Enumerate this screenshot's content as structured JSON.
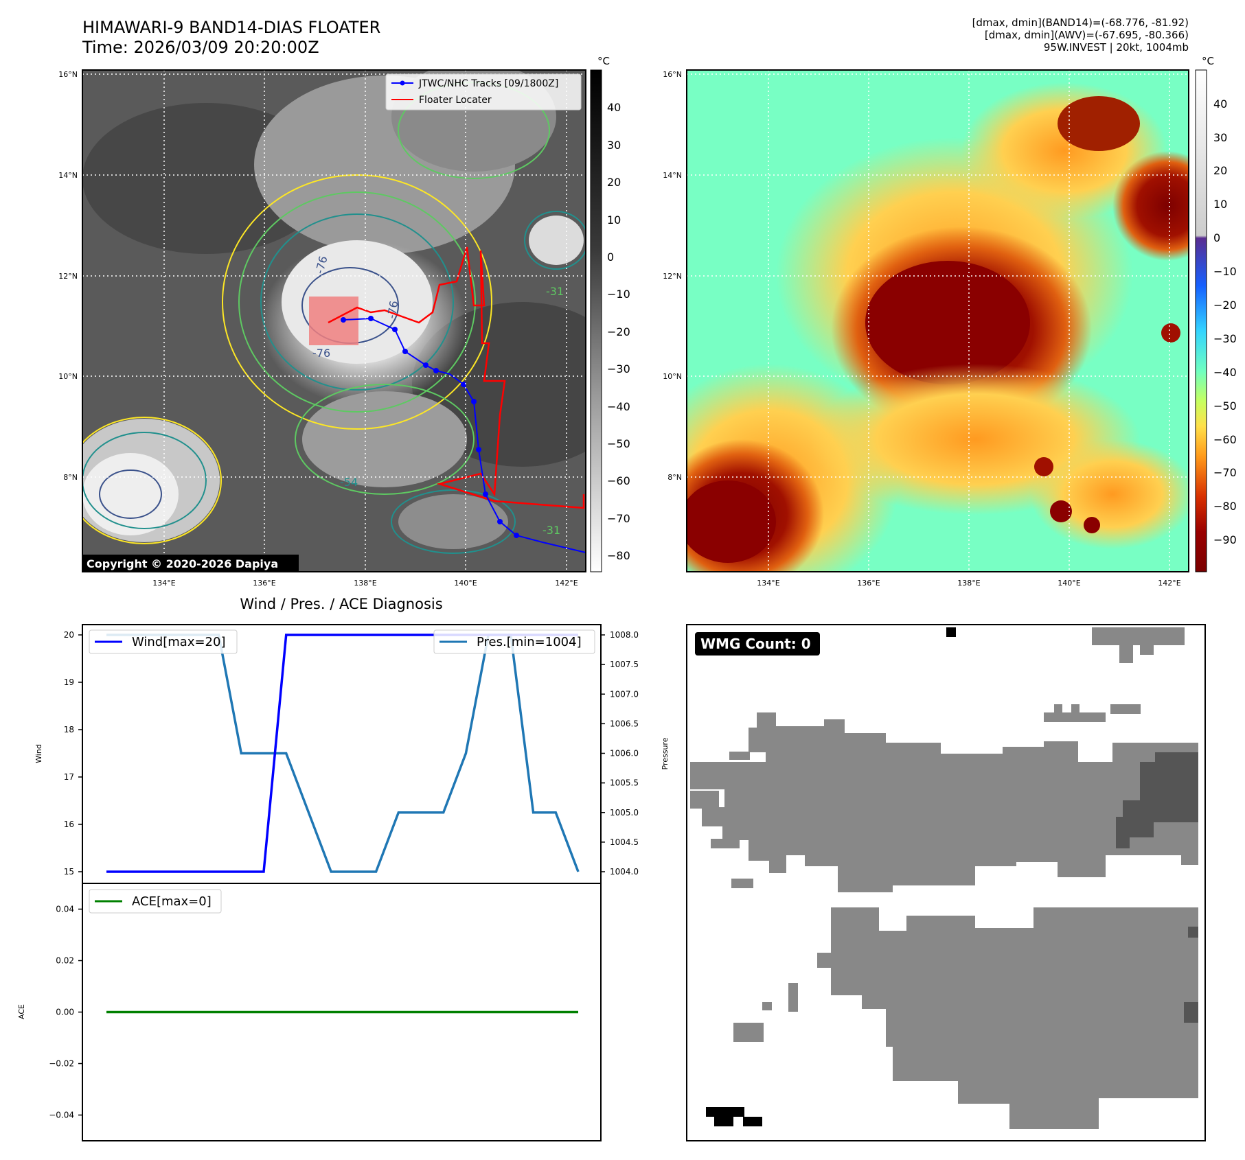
{
  "header": {
    "title_line1": "HIMAWARI-9 BAND14-DIAS FLOATER",
    "title_line2": "Time: 2026/03/09 20:20:00Z",
    "stats_line1": "[dmax, dmin](BAND14)=(-68.776, -81.92)",
    "stats_line2": "[dmax, dmin](AWV)=(-67.695, -80.366)",
    "stats_line3": "95W.INVEST | 20kt, 1004mb"
  },
  "ir_panel": {
    "lat_labels": [
      "16°N",
      "14°N",
      "12°N",
      "10°N",
      "8°N"
    ],
    "lon_labels": [
      "134°E",
      "136°E",
      "138°E",
      "140°E",
      "142°E"
    ],
    "colorbar_unit": "°C",
    "colorbar_ticks": [
      "40",
      "30",
      "20",
      "10",
      "0",
      "−10",
      "−20",
      "−30",
      "−40",
      "−50",
      "−60",
      "−70",
      "−80"
    ],
    "legend_tracks": "JTWC/NHC Tracks [09/1800Z]",
    "legend_floater": "Floater Locater",
    "copyright": "Copyright © 2020-2026 Dapiya",
    "contour_labels": [
      "-76",
      "-76",
      "-76",
      "-54",
      "-31",
      "-31"
    ]
  },
  "awv_panel": {
    "lat_labels": [
      "16°N",
      "14°N",
      "12°N",
      "10°N",
      "8°N"
    ],
    "lon_labels": [
      "134°E",
      "136°E",
      "138°E",
      "140°E",
      "142°E"
    ],
    "colorbar_unit": "°C",
    "colorbar_ticks": [
      "40",
      "30",
      "20",
      "10",
      "0",
      "−10",
      "−20",
      "−30",
      "−40",
      "−50",
      "−60",
      "−70",
      "−80",
      "−90"
    ]
  },
  "wmg_panel": {
    "label": "WMG Count: 0"
  },
  "colors": {
    "wind": "#0000ff",
    "pressure": "#1f77b4",
    "ace": "#008000",
    "track": "#0000ff",
    "floater": "#ff0000"
  },
  "chart_data": [
    {
      "type": "line",
      "title": "Wind / Pres. / ACE Diagnosis",
      "ylabel": "Wind",
      "y2label": "Pressure",
      "ylim": [
        15,
        20
      ],
      "y2lim": [
        1004,
        1008
      ],
      "yticks": [
        "20",
        "19",
        "18",
        "17",
        "16",
        "15"
      ],
      "y2ticks": [
        "1008.0",
        "1007.5",
        "1007.0",
        "1006.5",
        "1006.0",
        "1005.5",
        "1005.0",
        "1004.5",
        "1004.0"
      ],
      "series": [
        {
          "name": "Wind[max=20]",
          "axis": "left",
          "values": [
            15,
            15,
            15,
            15,
            15,
            15,
            15,
            15,
            20,
            20,
            20,
            20,
            20,
            20,
            20,
            20,
            20,
            20,
            20,
            20,
            20,
            20
          ]
        },
        {
          "name": "Pres.[min=1004]",
          "axis": "right",
          "values": [
            1008,
            1008,
            1008,
            1008,
            1008,
            1008,
            1006,
            1006,
            1006,
            1005,
            1004,
            1004,
            1004,
            1005,
            1005,
            1005,
            1006,
            1008,
            1008,
            1005,
            1005,
            1004
          ]
        }
      ]
    },
    {
      "type": "line",
      "ylabel": "ACE",
      "ylim": [
        -0.05,
        0.05
      ],
      "yticks": [
        "0.04",
        "0.02",
        "0.00",
        "−0.02",
        "−0.04"
      ],
      "series": [
        {
          "name": "ACE[max=0]",
          "values": [
            0,
            0,
            0,
            0,
            0,
            0,
            0,
            0,
            0,
            0,
            0,
            0,
            0,
            0,
            0,
            0,
            0,
            0,
            0,
            0,
            0,
            0
          ]
        }
      ]
    }
  ]
}
